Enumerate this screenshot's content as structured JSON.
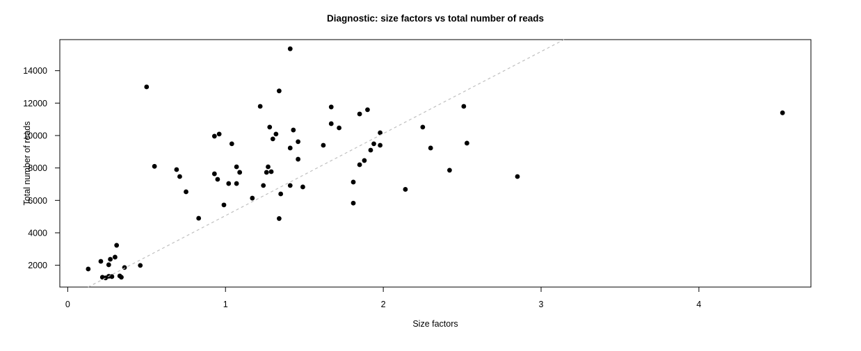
{
  "figure": {
    "background_color": "#ffffff",
    "axis_color": "#000000"
  },
  "chart_data": {
    "type": "scatter",
    "title": "Diagnostic: size factors vs total number of reads",
    "xlabel": "Size factors",
    "ylabel": "Total number of reads",
    "xlim": [
      -0.05,
      4.71
    ],
    "ylim": [
      655,
      15915
    ],
    "x_ticks": [
      0,
      1,
      2,
      3,
      4
    ],
    "y_ticks": [
      2000,
      4000,
      6000,
      8000,
      10000,
      12000,
      14000
    ],
    "grid": false,
    "legend": "none",
    "point_color": "#000000",
    "reference_line": {
      "style": "dashed",
      "color": "#bfbfbf",
      "slope": 5060,
      "intercept": 0
    },
    "points": [
      [
        0.13,
        1770
      ],
      [
        0.21,
        2240
      ],
      [
        0.22,
        1260
      ],
      [
        0.24,
        1220
      ],
      [
        0.26,
        2030
      ],
      [
        0.26,
        1320
      ],
      [
        0.27,
        2370
      ],
      [
        0.28,
        1300
      ],
      [
        0.3,
        2500
      ],
      [
        0.31,
        3230
      ],
      [
        0.33,
        1340
      ],
      [
        0.34,
        1260
      ],
      [
        0.36,
        1860
      ],
      [
        0.46,
        1990
      ],
      [
        0.5,
        13000
      ],
      [
        0.55,
        8100
      ],
      [
        0.69,
        7900
      ],
      [
        0.71,
        7470
      ],
      [
        0.75,
        6530
      ],
      [
        0.83,
        4900
      ],
      [
        0.93,
        7640
      ],
      [
        0.93,
        9960
      ],
      [
        0.95,
        7300
      ],
      [
        0.96,
        10090
      ],
      [
        0.99,
        5720
      ],
      [
        1.02,
        7040
      ],
      [
        1.04,
        9490
      ],
      [
        1.07,
        8070
      ],
      [
        1.07,
        7040
      ],
      [
        1.09,
        7730
      ],
      [
        1.17,
        6140
      ],
      [
        1.22,
        11800
      ],
      [
        1.24,
        6920
      ],
      [
        1.26,
        7730
      ],
      [
        1.27,
        8070
      ],
      [
        1.29,
        7770
      ],
      [
        1.28,
        10520
      ],
      [
        1.3,
        9790
      ],
      [
        1.32,
        10090
      ],
      [
        1.34,
        12750
      ],
      [
        1.34,
        4880
      ],
      [
        1.35,
        6400
      ],
      [
        1.41,
        15350
      ],
      [
        1.41,
        9230
      ],
      [
        1.41,
        6920
      ],
      [
        1.43,
        10340
      ],
      [
        1.46,
        9620
      ],
      [
        1.46,
        8540
      ],
      [
        1.49,
        6830
      ],
      [
        1.62,
        9400
      ],
      [
        1.67,
        11760
      ],
      [
        1.67,
        10730
      ],
      [
        1.72,
        10470
      ],
      [
        1.81,
        7130
      ],
      [
        1.81,
        5830
      ],
      [
        1.85,
        11330
      ],
      [
        1.85,
        8200
      ],
      [
        1.88,
        8460
      ],
      [
        1.9,
        11590
      ],
      [
        1.92,
        9100
      ],
      [
        1.94,
        9490
      ],
      [
        1.98,
        9400
      ],
      [
        1.98,
        10170
      ],
      [
        2.14,
        6680
      ],
      [
        2.25,
        10520
      ],
      [
        2.3,
        9230
      ],
      [
        2.42,
        7860
      ],
      [
        2.51,
        11800
      ],
      [
        2.53,
        9530
      ],
      [
        2.85,
        7470
      ],
      [
        4.53,
        11400
      ]
    ]
  }
}
